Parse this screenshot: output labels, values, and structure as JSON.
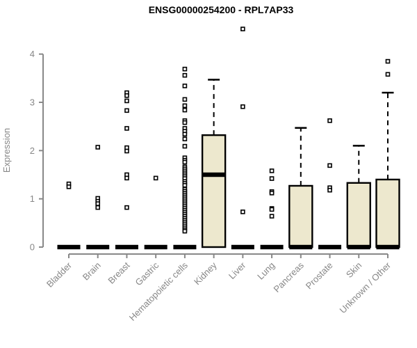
{
  "title": "ENSG00000254200 - RPL7AP33",
  "chart_data": {
    "type": "boxplot",
    "title": "ENSG00000254200 - RPL7AP33",
    "xlabel": "",
    "ylabel": "Expression",
    "ylim": [
      0,
      4
    ],
    "yticks": [
      0,
      1,
      2,
      3,
      4
    ],
    "grid": false,
    "legend": "none",
    "colors": {
      "box_fill": "#EDE8CE",
      "box_stroke": "#000000",
      "axis": "#888888",
      "text": "#878787",
      "title": "#000000"
    },
    "categories": [
      "Bladder",
      "Brain",
      "Breast",
      "Gastric",
      "Hematopoietic cells",
      "Kidney",
      "Liver",
      "Lung",
      "Pancreas",
      "Prostate",
      "Skin",
      "Unknown / Other"
    ],
    "series": [
      {
        "category": "Bladder",
        "q1": 0,
        "median": 0,
        "q3": 0,
        "whisker_low": 0,
        "whisker_high": 0,
        "outliers": [
          1.31,
          1.25
        ]
      },
      {
        "category": "Brain",
        "q1": 0,
        "median": 0,
        "q3": 0,
        "whisker_low": 0,
        "whisker_high": 0,
        "outliers": [
          2.07,
          1.01,
          0.95,
          0.9,
          0.82
        ]
      },
      {
        "category": "Breast",
        "q1": 0,
        "median": 0,
        "q3": 0,
        "whisker_low": 0,
        "whisker_high": 0,
        "outliers": [
          3.2,
          3.14,
          3.03,
          2.83,
          2.46,
          2.06,
          1.99,
          1.5,
          1.43,
          0.82
        ]
      },
      {
        "category": "Gastric",
        "q1": 0,
        "median": 0,
        "q3": 0,
        "whisker_low": 0,
        "whisker_high": 0,
        "outliers": [
          1.43
        ]
      },
      {
        "category": "Hematopoietic cells",
        "q1": 0,
        "median": 0,
        "q3": 0,
        "whisker_low": 0,
        "whisker_high": 0,
        "outliers": [
          3.69,
          3.56,
          3.34,
          3.06,
          2.93,
          2.84,
          2.62,
          2.58,
          2.46,
          2.4,
          2.34,
          2.24,
          2.09,
          1.85,
          1.8,
          1.76,
          1.66,
          1.62,
          1.58,
          1.54,
          1.5,
          1.46,
          1.42,
          1.36,
          1.32,
          1.28,
          1.2,
          1.16,
          1.12,
          1.08,
          1.04,
          1.0,
          0.96,
          0.92,
          0.88,
          0.84,
          0.8,
          0.76,
          0.72,
          0.68,
          0.64,
          0.6,
          0.56,
          0.52,
          0.48,
          0.44,
          0.4,
          0.36,
          0.33
        ]
      },
      {
        "category": "Kidney",
        "q1": 0,
        "median": 1.5,
        "q3": 2.32,
        "whisker_low": 0,
        "whisker_high": 3.47,
        "outliers": []
      },
      {
        "category": "Liver",
        "q1": 0,
        "median": 0,
        "q3": 0,
        "whisker_low": 0,
        "whisker_high": 0,
        "outliers": [
          4.52,
          2.91,
          0.73
        ]
      },
      {
        "category": "Lung",
        "q1": 0,
        "median": 0,
        "q3": 0,
        "whisker_low": 0,
        "whisker_high": 0,
        "outliers": [
          1.58,
          1.42,
          1.15,
          1.12,
          0.8,
          0.78,
          0.64
        ]
      },
      {
        "category": "Pancreas",
        "q1": 0,
        "median": 0,
        "q3": 1.27,
        "whisker_low": 0,
        "whisker_high": 2.47,
        "outliers": []
      },
      {
        "category": "Prostate",
        "q1": 0,
        "median": 0,
        "q3": 0,
        "whisker_low": 0,
        "whisker_high": 0,
        "outliers": [
          2.62,
          1.69,
          1.23,
          1.18
        ]
      },
      {
        "category": "Skin",
        "q1": 0,
        "median": 0,
        "q3": 1.33,
        "whisker_low": 0,
        "whisker_high": 2.1,
        "outliers": []
      },
      {
        "category": "Unknown / Other",
        "q1": 0,
        "median": 0,
        "q3": 1.4,
        "whisker_low": 0,
        "whisker_high": 3.2,
        "outliers": [
          3.85,
          3.58
        ]
      }
    ]
  }
}
